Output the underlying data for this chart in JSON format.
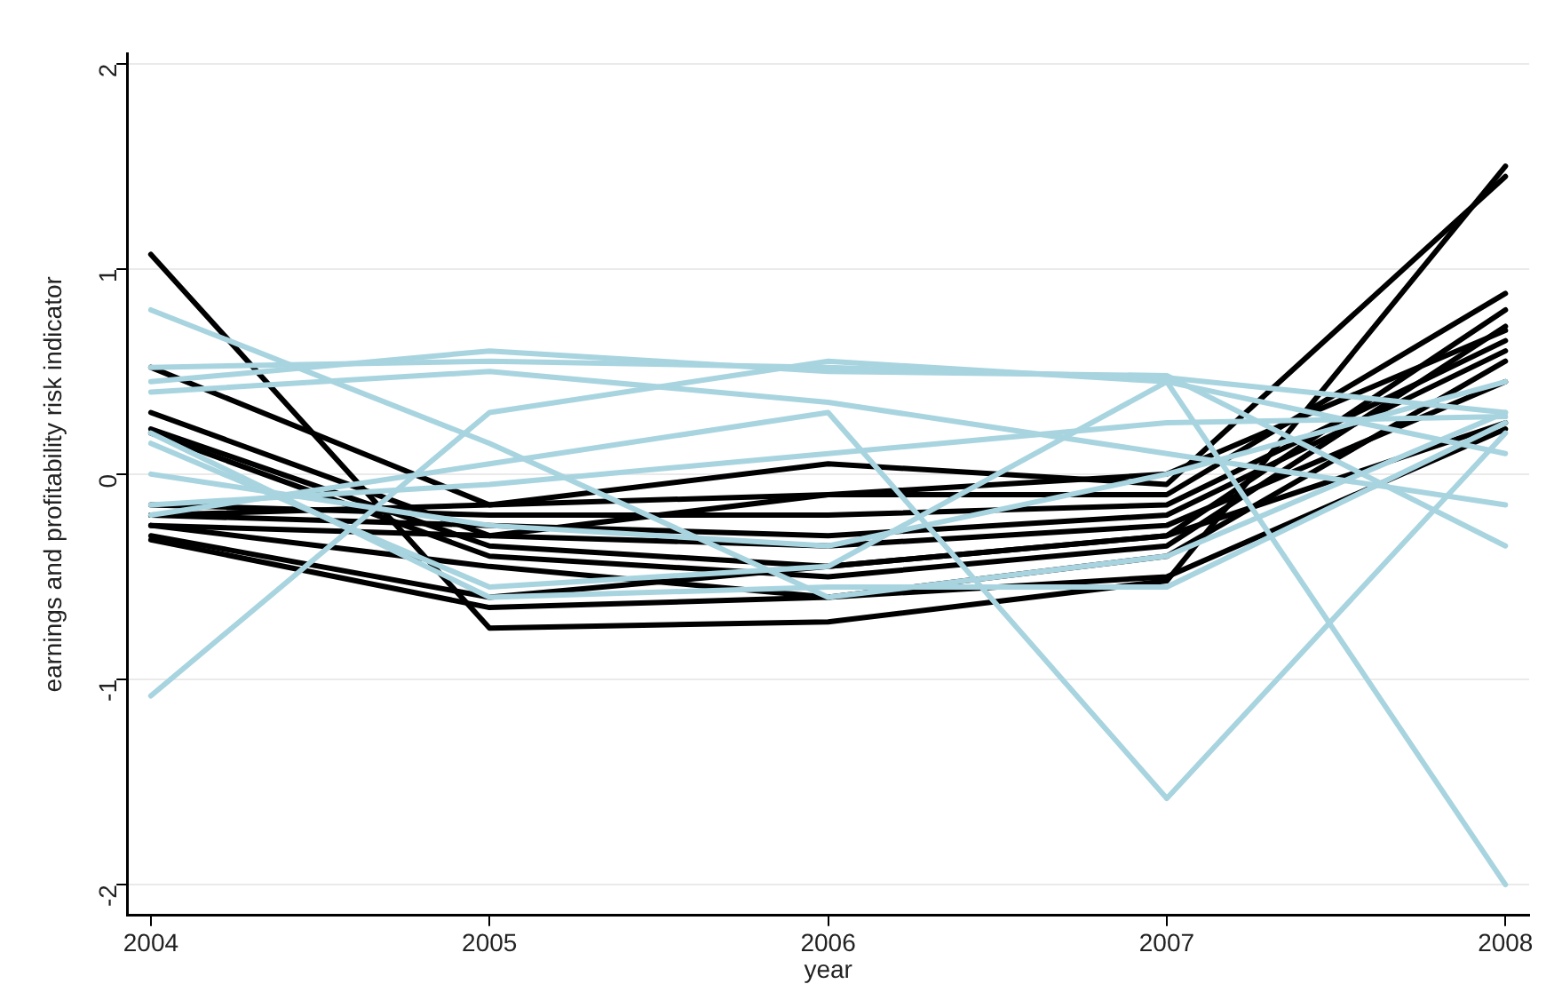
{
  "chart_data": {
    "type": "line",
    "xlabel": "year",
    "ylabel": "earnings and profitability risk indicator",
    "x": [
      2004,
      2005,
      2006,
      2007,
      2008
    ],
    "xlim": [
      2003.93,
      2008.07
    ],
    "xticks": [
      2004,
      2005,
      2006,
      2007,
      2008
    ],
    "ylim": [
      -2.15,
      2.05
    ],
    "yticks": [
      -2,
      -1,
      0,
      1,
      2
    ],
    "grid": "y",
    "legend": false,
    "marker": "none",
    "line_style": "solid",
    "series": [
      {
        "color": "#a8d4e0",
        "values": [
          0.8,
          0.15,
          -0.6,
          -0.4,
          0.3
        ]
      },
      {
        "color": "#a8d4e0",
        "values": [
          0.52,
          0.55,
          0.52,
          0.47,
          0.3
        ]
      },
      {
        "color": "#a8d4e0",
        "values": [
          0.45,
          0.6,
          0.5,
          0.48,
          -0.35
        ]
      },
      {
        "color": "#a8d4e0",
        "values": [
          0.4,
          0.5,
          0.35,
          0.1,
          -0.15
        ]
      },
      {
        "color": "#a8d4e0",
        "values": [
          -1.08,
          0.3,
          0.55,
          0.45,
          0.1
        ]
      },
      {
        "color": "#a8d4e0",
        "values": [
          0.2,
          -0.6,
          -0.55,
          -0.55,
          0.25
        ]
      },
      {
        "color": "#a8d4e0",
        "values": [
          -0.2,
          0.05,
          0.3,
          -1.58,
          0.2
        ]
      },
      {
        "color": "#a8d4e0",
        "values": [
          0.15,
          -0.55,
          -0.45,
          0.45,
          -2.0
        ]
      },
      {
        "color": "#a8d4e0",
        "values": [
          -0.15,
          -0.05,
          0.1,
          0.25,
          0.28
        ]
      },
      {
        "color": "#a8d4e0",
        "values": [
          0.0,
          -0.25,
          -0.35,
          0.0,
          0.45
        ]
      },
      {
        "color": "#000000",
        "values": [
          1.07,
          -0.75,
          -0.72,
          -0.52,
          1.5
        ]
      },
      {
        "color": "#000000",
        "values": [
          0.52,
          -0.15,
          0.05,
          -0.05,
          1.45
        ]
      },
      {
        "color": "#000000",
        "values": [
          0.3,
          -0.3,
          -0.1,
          -0.1,
          0.88
        ]
      },
      {
        "color": "#000000",
        "values": [
          0.22,
          -0.35,
          -0.45,
          -0.3,
          0.8
        ]
      },
      {
        "color": "#000000",
        "values": [
          0.2,
          -0.4,
          -0.5,
          -0.35,
          0.72
        ]
      },
      {
        "color": "#000000",
        "values": [
          -0.15,
          -0.2,
          -0.2,
          -0.15,
          0.65
        ]
      },
      {
        "color": "#000000",
        "values": [
          -0.2,
          -0.25,
          -0.3,
          -0.2,
          0.6
        ]
      },
      {
        "color": "#000000",
        "values": [
          -0.25,
          -0.3,
          -0.35,
          -0.25,
          0.45
        ]
      },
      {
        "color": "#000000",
        "values": [
          -0.3,
          -0.6,
          -0.45,
          -0.3,
          0.25
        ]
      },
      {
        "color": "#000000",
        "values": [
          -0.32,
          -0.65,
          -0.6,
          -0.5,
          0.22
        ]
      },
      {
        "color": "#000000",
        "values": [
          -0.2,
          -0.15,
          -0.1,
          0.0,
          0.7
        ]
      },
      {
        "color": "#000000",
        "values": [
          -0.25,
          -0.45,
          -0.6,
          -0.4,
          0.55
        ]
      }
    ]
  }
}
